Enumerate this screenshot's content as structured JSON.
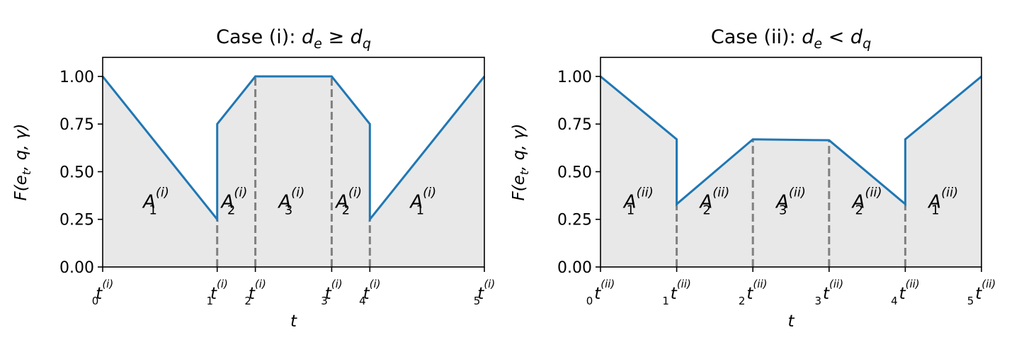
{
  "chart_data": [
    {
      "type": "line",
      "title": {
        "prefix": "Case (i): ",
        "lhs": "d",
        "lhs_sub": "e",
        "op": "≥",
        "rhs": "d",
        "rhs_sub": "q"
      },
      "xlabel": "t",
      "ylabel": "F(e",
      "ylabel_sub": "t",
      "ylabel_rest": ", q, γ)",
      "ylim": [
        0,
        1.1
      ],
      "yticks": [
        "0.00",
        "0.25",
        "0.50",
        "0.75",
        "1.00"
      ],
      "ytick_values": [
        0,
        0.25,
        0.5,
        0.75,
        1.0
      ],
      "xlim": [
        0,
        1
      ],
      "xticks": [
        {
          "x": 0.0,
          "base": "t",
          "sub": "0",
          "sup": "(i)"
        },
        {
          "x": 0.3,
          "base": "t",
          "sub": "1",
          "sup": "(i)"
        },
        {
          "x": 0.4,
          "base": "t",
          "sub": "2",
          "sup": "(i)"
        },
        {
          "x": 0.6,
          "base": "t",
          "sub": "3",
          "sup": "(i)"
        },
        {
          "x": 0.7,
          "base": "t",
          "sub": "4",
          "sup": "(i)"
        },
        {
          "x": 1.0,
          "base": "t",
          "sub": "5",
          "sup": "(i)"
        }
      ],
      "series": [
        {
          "color": "#1f77b4",
          "x": [
            0,
            0.3,
            0.3,
            0.4,
            0.6,
            0.7,
            0.7,
            1.0
          ],
          "y": [
            1.0,
            0.25,
            0.75,
            1.0,
            1.0,
            0.75,
            0.25,
            1.0
          ]
        }
      ],
      "fill_color": "#e8e8e8",
      "vlines": [
        0.3,
        0.4,
        0.6,
        0.7
      ],
      "region_labels": [
        {
          "x": 0.14,
          "base": "A",
          "sub": "1",
          "sup": "(i)"
        },
        {
          "x": 0.345,
          "base": "A",
          "sub": "2",
          "sup": "(i)"
        },
        {
          "x": 0.495,
          "base": "A",
          "sub": "3",
          "sup": "(i)"
        },
        {
          "x": 0.645,
          "base": "A",
          "sub": "2",
          "sup": "(i)"
        },
        {
          "x": 0.84,
          "base": "A",
          "sub": "1",
          "sup": "(i)"
        }
      ],
      "region_label_y": 0.31
    },
    {
      "type": "line",
      "title": {
        "prefix": "Case (ii): ",
        "lhs": "d",
        "lhs_sub": "e",
        "op": "<",
        "rhs": "d",
        "rhs_sub": "q"
      },
      "xlabel": "t",
      "ylabel": "F(e",
      "ylabel_sub": "t",
      "ylabel_rest": ", q, γ)",
      "ylim": [
        0,
        1.1
      ],
      "yticks": [
        "0.00",
        "0.25",
        "0.50",
        "0.75",
        "1.00"
      ],
      "ytick_values": [
        0,
        0.25,
        0.5,
        0.75,
        1.0
      ],
      "xlim": [
        0,
        1
      ],
      "xticks": [
        {
          "x": 0.0,
          "base": "t",
          "sub": "0",
          "sup": "(ii)"
        },
        {
          "x": 0.2,
          "base": "t",
          "sub": "1",
          "sup": "(ii)"
        },
        {
          "x": 0.4,
          "base": "t",
          "sub": "2",
          "sup": "(ii)"
        },
        {
          "x": 0.6,
          "base": "t",
          "sub": "3",
          "sup": "(ii)"
        },
        {
          "x": 0.8,
          "base": "t",
          "sub": "4",
          "sup": "(ii)"
        },
        {
          "x": 1.0,
          "base": "t",
          "sub": "5",
          "sup": "(ii)"
        }
      ],
      "series": [
        {
          "color": "#1f77b4",
          "x": [
            0,
            0.2,
            0.2,
            0.4,
            0.6,
            0.8,
            0.8,
            1.0
          ],
          "y": [
            1.0,
            0.67,
            0.33,
            0.67,
            0.665,
            0.33,
            0.67,
            1.0
          ]
        }
      ],
      "fill_color": "#e8e8e8",
      "vlines": [
        0.2,
        0.4,
        0.6,
        0.8
      ],
      "region_labels": [
        {
          "x": 0.1,
          "base": "A",
          "sub": "1",
          "sup": "(ii)"
        },
        {
          "x": 0.3,
          "base": "A",
          "sub": "2",
          "sup": "(ii)"
        },
        {
          "x": 0.5,
          "base": "A",
          "sub": "3",
          "sup": "(ii)"
        },
        {
          "x": 0.7,
          "base": "A",
          "sub": "2",
          "sup": "(ii)"
        },
        {
          "x": 0.9,
          "base": "A",
          "sub": "1",
          "sup": "(ii)"
        }
      ],
      "region_label_y": 0.31
    }
  ]
}
